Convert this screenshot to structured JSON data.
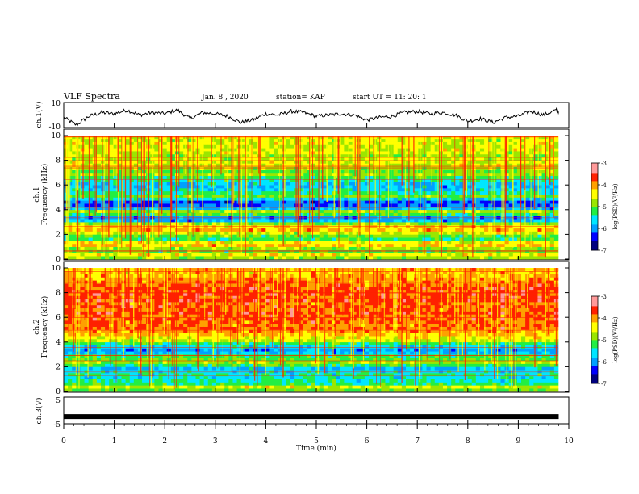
{
  "header": {
    "title": "VLF Spectra",
    "date": "Jan. 8 , 2020",
    "station": "station= KAP",
    "start": "start UT =  11: 20: 1"
  },
  "colors": {
    "scale": [
      "#000080",
      "#0000ff",
      "#00a0ff",
      "#00e6ff",
      "#22ee44",
      "#9be600",
      "#ffff00",
      "#ffa000",
      "#ff2000",
      "#ff9a9a",
      "#ffffff"
    ],
    "trace": "#000000"
  },
  "chart_data": [
    {
      "name": "ch1-waveform",
      "type": "line",
      "ylabel": "ch.1(V)",
      "ylim": [
        -10,
        10
      ],
      "yticks": [
        "10",
        "-10"
      ],
      "x": [
        0,
        0.25,
        0.5,
        0.75,
        1.0,
        1.25,
        1.5,
        1.75,
        2.0,
        2.25,
        2.5,
        2.75,
        3.0,
        3.25,
        3.5,
        3.75,
        4.0,
        4.25,
        4.5,
        4.75,
        5.0,
        5.25,
        5.5,
        5.75,
        6.0,
        6.25,
        6.5,
        6.75,
        7.0,
        7.25,
        7.5,
        7.75,
        8.0,
        8.25,
        8.5,
        8.75,
        9.0,
        9.25,
        9.5,
        9.75,
        9.8
      ],
      "values": [
        -2,
        -8,
        -1,
        2,
        1,
        4,
        0,
        2,
        1,
        4,
        -3,
        2,
        1,
        -1,
        -6,
        -4,
        1,
        0,
        3,
        2,
        -1,
        0,
        1,
        0,
        -4,
        -2,
        -1,
        2,
        3,
        1,
        2,
        0,
        -5,
        -3,
        -6,
        -2,
        -1,
        3,
        0,
        4,
        1
      ]
    },
    {
      "name": "ch1-spectrogram",
      "type": "heatmap",
      "ylabel": "ch.1\nFrequency (kHz)",
      "ylim": [
        0,
        10
      ],
      "yticks": [
        "0",
        "2",
        "4",
        "6",
        "8",
        "10"
      ],
      "colorbar": {
        "label": "log(PSD)(V²/Hz)",
        "range": [
          -7,
          -3
        ],
        "ticks": [
          "-3",
          "-4",
          "-5",
          "-6",
          "-7"
        ]
      },
      "profile": [
        0.55,
        0.65,
        0.5,
        0.55,
        0.7,
        0.65,
        0.45,
        0.5,
        0.6,
        0.72,
        0.7,
        0.55,
        0.3,
        0.25,
        0.45,
        0.55,
        0.3,
        0.2,
        0.2,
        0.35,
        0.5,
        0.4,
        0.35,
        0.3,
        0.32,
        0.4,
        0.45,
        0.55,
        0.5,
        0.55,
        0.6,
        0.62,
        0.58,
        0.55,
        0.6,
        0.62,
        0.6,
        0.62,
        0.6,
        0.62
      ]
    },
    {
      "name": "ch2-spectrogram",
      "type": "heatmap",
      "ylabel": "ch.2\nFrequency (kHz)",
      "ylim": [
        0,
        10
      ],
      "yticks": [
        "0",
        "2",
        "4",
        "6",
        "8",
        "10"
      ],
      "colorbar": {
        "label": "log(PSD)(V²/Hz)",
        "range": [
          -7,
          -3
        ],
        "ticks": [
          "-3",
          "-4",
          "-5",
          "-6",
          "-7"
        ]
      },
      "profile": [
        0.5,
        0.6,
        0.45,
        0.4,
        0.35,
        0.4,
        0.35,
        0.3,
        0.45,
        0.55,
        0.5,
        0.45,
        0.3,
        0.25,
        0.35,
        0.45,
        0.6,
        0.65,
        0.7,
        0.75,
        0.8,
        0.78,
        0.8,
        0.82,
        0.8,
        0.85,
        0.8,
        0.82,
        0.8,
        0.85,
        0.82,
        0.84,
        0.82,
        0.84,
        0.8,
        0.78,
        0.75,
        0.72,
        0.7,
        0.72
      ]
    },
    {
      "name": "ch3-waveform",
      "type": "line",
      "ylabel": "ch.3(V)",
      "ylim": [
        -5,
        5
      ],
      "yticks": [
        "5",
        "-5"
      ],
      "x": [
        0,
        9.8
      ],
      "values": [
        -2,
        -2
      ]
    }
  ],
  "time_axis": {
    "label": "Time (min)",
    "range": [
      0,
      10
    ],
    "ticks": [
      "0",
      "1",
      "2",
      "3",
      "4",
      "5",
      "6",
      "7",
      "8",
      "9",
      "10"
    ]
  }
}
